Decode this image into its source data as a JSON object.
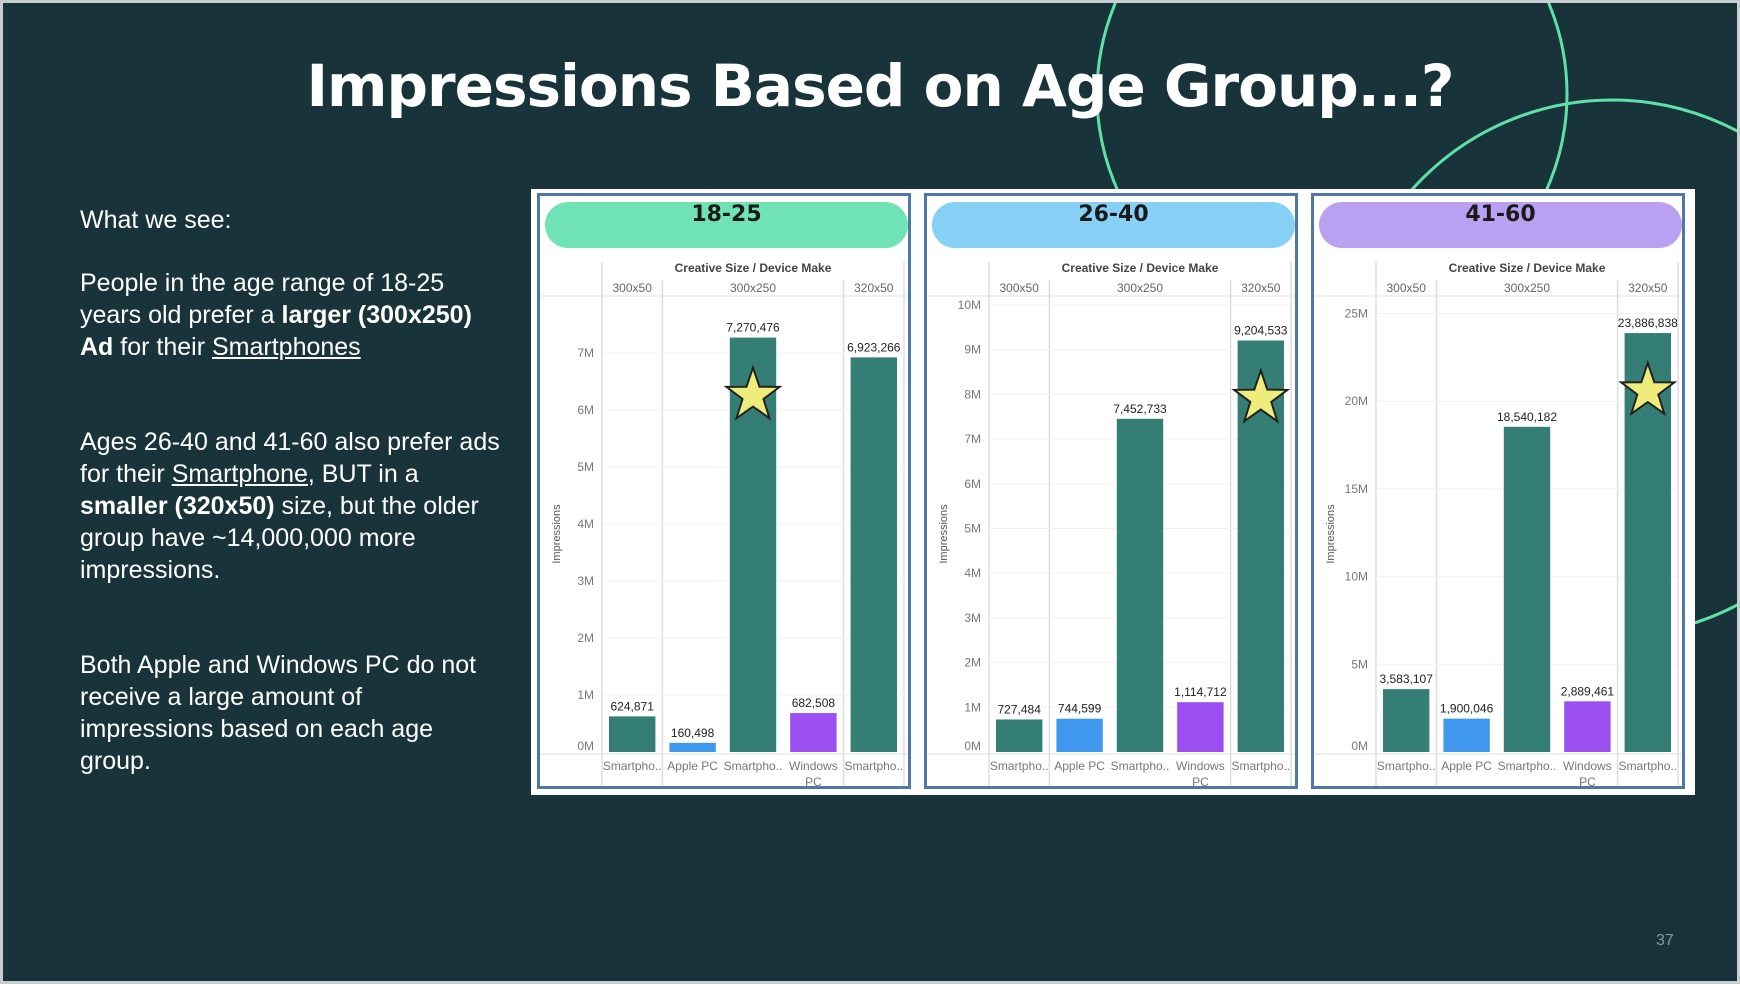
{
  "title": "Impressions Based on Age Group...?",
  "left_text": {
    "heading": "What we see:",
    "p1": {
      "a": "People in the age range of 18-25 years old prefer a ",
      "b": "larger (300x250) Ad",
      "c": " for their ",
      "d": "Smartphones"
    },
    "p2": {
      "a": "Ages 26-40 and  41-60 also prefer ads for their ",
      "b": "Smartphone",
      "c": ", BUT in a ",
      "d": "smaller (320x50)",
      "e": " size, but the older group have ~14,000,000 more impressions."
    },
    "p3": "Both Apple and Windows PC do not receive a large amount of impressions based on each age group."
  },
  "page_number": "37",
  "colors": {
    "background": "#18333a",
    "smartphone": "#357e76",
    "apple": "#3f97ee",
    "windows": "#9b4ff0",
    "star": "#eeed7b",
    "arc": "#5fe0a8",
    "border": "#4f78a8"
  },
  "chart_data": [
    {
      "type": "bar",
      "title": "18-25",
      "pill_color": "#6fe3b5",
      "header": "Creative Size  /  Device Make",
      "ylabel": "Impressions",
      "groups": [
        "300x50",
        "300x250",
        "320x50"
      ],
      "categories": [
        "Smartpho..",
        "Apple PC",
        "Smartpho..",
        "Windows PC",
        "Smartpho.."
      ],
      "group_of": [
        0,
        1,
        1,
        1,
        2
      ],
      "values": [
        624871,
        160498,
        7270476,
        682508,
        6923266
      ],
      "labels": [
        "624,871",
        "160,498",
        "7,270,476",
        "682,508",
        "6,923,266"
      ],
      "devices": [
        "smartphone",
        "apple",
        "smartphone",
        "windows",
        "smartphone"
      ],
      "yticks": [
        "0M",
        "1M",
        "2M",
        "3M",
        "4M",
        "5M",
        "6M",
        "7M"
      ],
      "ytick_step": 1000000,
      "ylim": [
        0,
        8000000
      ],
      "star_on": 2
    },
    {
      "type": "bar",
      "title": "26-40",
      "pill_color": "#86cff5",
      "header": "Creative Size  /  Device Make",
      "ylabel": "Impressions",
      "groups": [
        "300x50",
        "300x250",
        "320x50"
      ],
      "categories": [
        "Smartpho..",
        "Apple PC",
        "Smartpho..",
        "Windows PC",
        "Smartpho.."
      ],
      "group_of": [
        0,
        1,
        1,
        1,
        2
      ],
      "values": [
        727484,
        744599,
        7452733,
        1114712,
        9204533
      ],
      "labels": [
        "727,484",
        "744,599",
        "7,452,733",
        "1,114,712",
        "9,204,533"
      ],
      "devices": [
        "smartphone",
        "apple",
        "smartphone",
        "windows",
        "smartphone"
      ],
      "yticks": [
        "0M",
        "1M",
        "2M",
        "3M",
        "4M",
        "5M",
        "6M",
        "7M",
        "8M",
        "9M",
        "10M"
      ],
      "ytick_step": 1000000,
      "ylim": [
        0,
        10200000
      ],
      "star_on": 4
    },
    {
      "type": "bar",
      "title": "41-60",
      "pill_color": "#baa0f0",
      "header": "Creative Size  /  Device Make",
      "ylabel": "Impressions",
      "groups": [
        "300x50",
        "300x250",
        "320x50"
      ],
      "categories": [
        "Smartpho..",
        "Apple PC",
        "Smartpho..",
        "Windows PC",
        "Smartpho.."
      ],
      "group_of": [
        0,
        1,
        1,
        1,
        2
      ],
      "values": [
        3583107,
        1900046,
        18540182,
        2889461,
        23886838
      ],
      "labels": [
        "3,583,107",
        "1,900,046",
        "18,540,182",
        "2,889,461",
        "23,886,838"
      ],
      "devices": [
        "smartphone",
        "apple",
        "smartphone",
        "windows",
        "smartphone"
      ],
      "yticks": [
        "0M",
        "5M",
        "10M",
        "15M",
        "20M",
        "25M"
      ],
      "ytick_step": 5000000,
      "ylim": [
        0,
        26000000
      ],
      "star_on": 4
    }
  ]
}
